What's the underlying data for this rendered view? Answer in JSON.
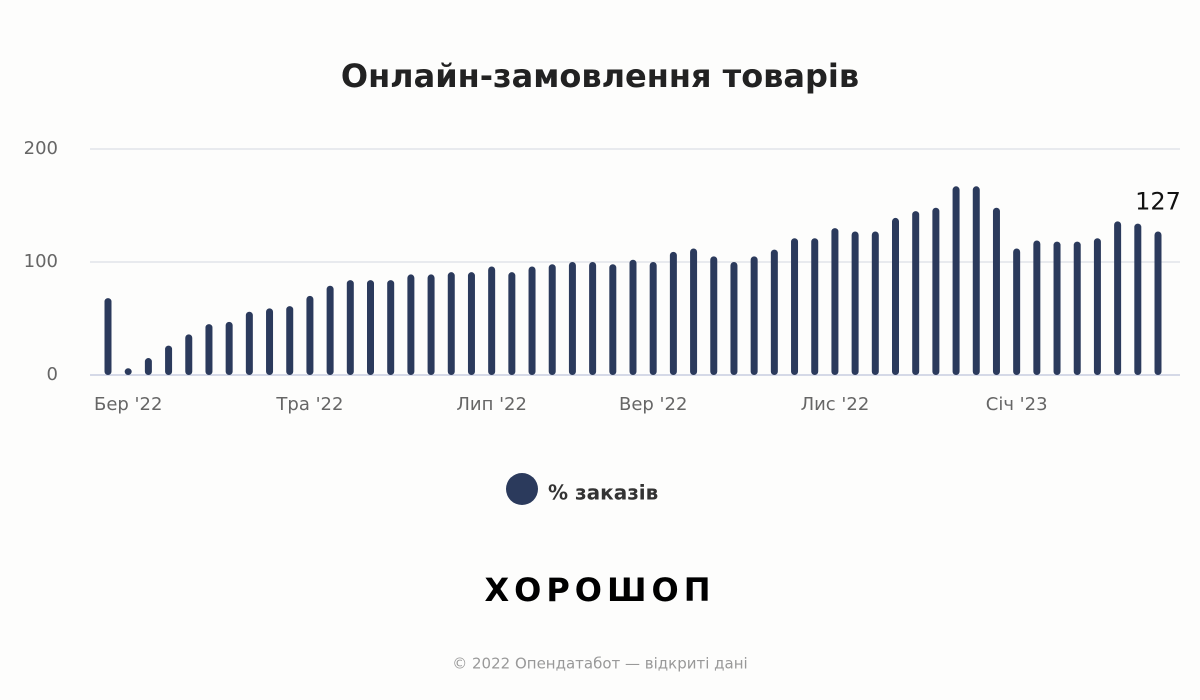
{
  "chart_data": {
    "type": "bar",
    "title": "Онлайн-замовлення товарів",
    "categories": [
      null,
      "Бер '22",
      null,
      null,
      null,
      null,
      null,
      null,
      null,
      null,
      "Тра '22",
      null,
      null,
      null,
      null,
      null,
      null,
      null,
      null,
      "Лип '22",
      null,
      null,
      null,
      null,
      null,
      null,
      null,
      "Вер '22",
      null,
      null,
      null,
      null,
      null,
      null,
      null,
      null,
      "Лис '22",
      null,
      null,
      null,
      null,
      null,
      null,
      null,
      null,
      "Січ '23",
      null,
      null,
      null,
      null,
      null,
      null,
      null
    ],
    "series": [
      {
        "name": "% заказів",
        "color": "#2b3a5c",
        "values": [
          68,
          6,
          15,
          26,
          36,
          45,
          47,
          56,
          59,
          61,
          70,
          79,
          84,
          84,
          84,
          89,
          89,
          91,
          91,
          96,
          91,
          96,
          98,
          100,
          100,
          98,
          102,
          100,
          109,
          112,
          105,
          100,
          105,
          111,
          121,
          121,
          130,
          127,
          127,
          139,
          145,
          148,
          167,
          167,
          148,
          112,
          119,
          118,
          118,
          121,
          136,
          134,
          127
        ]
      }
    ],
    "ylim": [
      0,
      200
    ],
    "yticks": [
      0,
      100,
      200
    ],
    "grid": true,
    "brand": "ХОРОШОП",
    "footer": "© 2022 Опендатабот — відкриті дані"
  }
}
